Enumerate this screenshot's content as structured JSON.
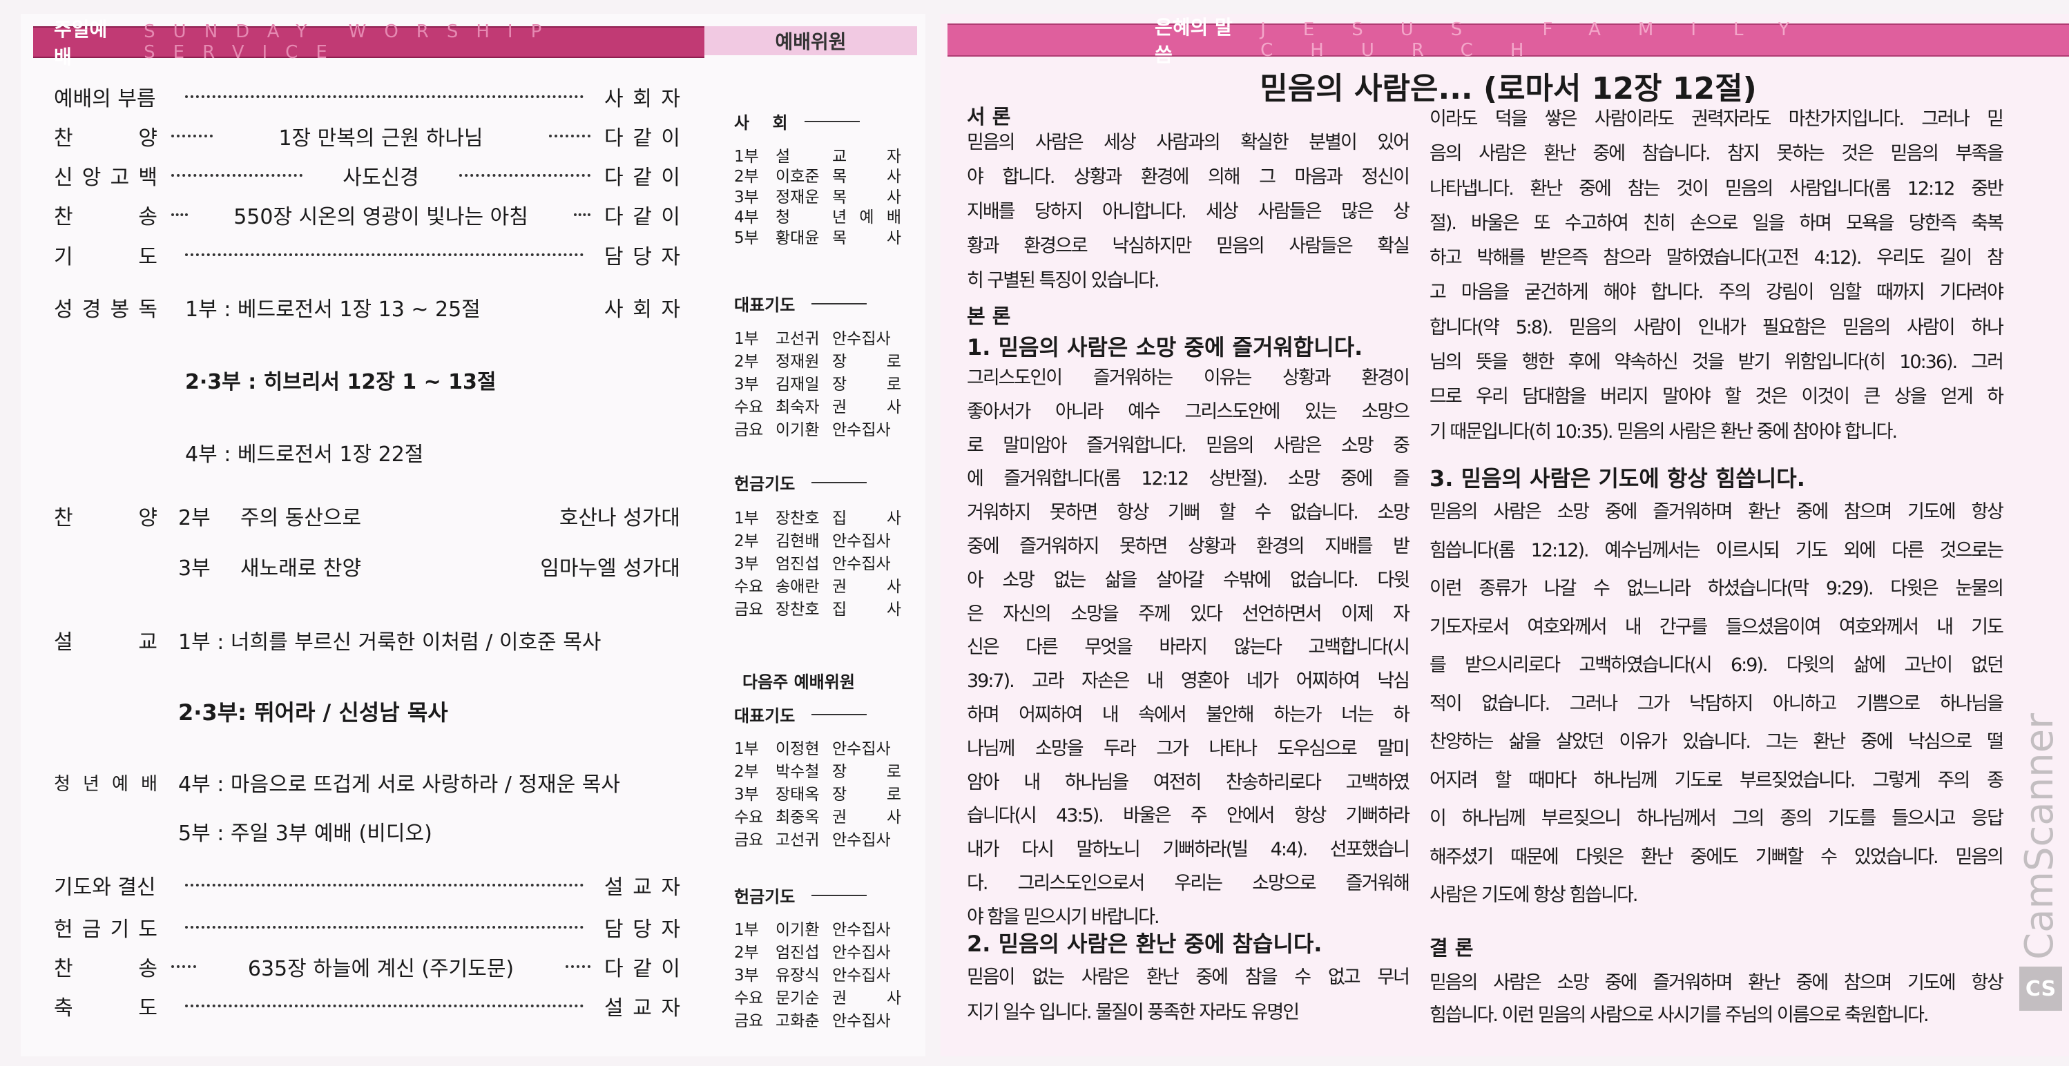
{
  "headers": {
    "worship_ko": "주일예배",
    "worship_en": "SUNDAY WORSHIP SERVICE",
    "staff": "예배위원",
    "word_ko": "은혜의 말씀",
    "word_en": "JESUS FAMILY CHURCH"
  },
  "colors": {
    "worship_bar": "#c13a74",
    "staff_bar": "#f1c9e2",
    "word_bar": "#df5f9d"
  },
  "order": {
    "call": {
      "label": "예배의 부름",
      "right": "사 회 자"
    },
    "praise1": {
      "label": "찬 양",
      "center": "1장 만복의 근원 하나님",
      "right": "다 같 이"
    },
    "creed": {
      "label": "신 앙 고 백",
      "center": "사도신경",
      "right": "다 같 이"
    },
    "hymn1": {
      "label": "찬 송",
      "center": "550장 시온의 영광이 빛나는 아침",
      "right": "다 같 이"
    },
    "prayer": {
      "label": "기 도",
      "right": "담 당 자"
    },
    "reading": {
      "label": "성 경 봉 독",
      "p1": "1부 : 베드로전서 1장 13 ~ 25절",
      "right": "사 회 자",
      "p23": "2·3부 : 히브리서 12장 1 ~ 13절",
      "p4": "4부 : 베드로전서 1장 22절"
    },
    "choir": {
      "label": "찬 양",
      "r1_part": "2부",
      "r1_song": "주의 동산으로",
      "r1_choir": "호산나 성가대",
      "r2_part": "3부",
      "r2_song": "새노래로 찬양",
      "r2_choir": "임마누엘 성가대"
    },
    "sermon": {
      "label": "설 교",
      "p1": "1부 : 너희를 부르신 거룩한 이처럼 / 이호준 목사",
      "p23": "2·3부: 뛰어라  / 신성남 목사"
    },
    "youth": {
      "label": "청 년 예 배",
      "p4": "4부 : 마음으로 뜨겁게 서로 사랑하라 / 정재운 목사",
      "p5": "5부 : 주일 3부 예배 (비디오)"
    },
    "decision": {
      "label": "기도와 결신",
      "right": "설 교 자"
    },
    "offering": {
      "label": "헌 금 기 도",
      "right": "담 당 자"
    },
    "hymn2": {
      "label": "찬 송",
      "center": "635장 하늘에 계신 (주기도문)",
      "right": "다 같 이"
    },
    "benediction": {
      "label": "축 도",
      "right": "설 교 자"
    }
  },
  "staff": {
    "host": {
      "heading": "사    회",
      "items": [
        {
          "part": "1부",
          "name": "설",
          "title": "교 자"
        },
        {
          "part": "2부",
          "name": "이호준",
          "title": "목 사"
        },
        {
          "part": "3부",
          "name": "정재운",
          "title": "목 사"
        },
        {
          "part": "4부",
          "name": "청",
          "title": "년 예 배"
        },
        {
          "part": "5부",
          "name": "황대윤",
          "title": "목 사"
        }
      ]
    },
    "rep_prayer": {
      "heading": "대표기도",
      "items": [
        {
          "part": "1부",
          "name": "고선귀",
          "title": "안수집사"
        },
        {
          "part": "2부",
          "name": "정재원",
          "title": "장 로"
        },
        {
          "part": "3부",
          "name": "김재일",
          "title": "장 로"
        },
        {
          "part": "수요",
          "name": "최숙자",
          "title": "권 사"
        },
        {
          "part": "금요",
          "name": "이기환",
          "title": "안수집사"
        }
      ]
    },
    "offering_prayer": {
      "heading": "헌금기도",
      "items": [
        {
          "part": "1부",
          "name": "장찬호",
          "title": "집 사"
        },
        {
          "part": "2부",
          "name": "김현배",
          "title": "안수집사"
        },
        {
          "part": "3부",
          "name": "엄진섭",
          "title": "안수집사"
        },
        {
          "part": "수요",
          "name": "송애란",
          "title": "권 사"
        },
        {
          "part": "금요",
          "name": "장찬호",
          "title": "집 사"
        }
      ]
    },
    "next_week": "다음주 예배위원",
    "next_rep_prayer": {
      "heading": "대표기도",
      "items": [
        {
          "part": "1부",
          "name": "이정현",
          "title": "안수집사"
        },
        {
          "part": "2부",
          "name": "박수철",
          "title": "장 로"
        },
        {
          "part": "3부",
          "name": "장태옥",
          "title": "장 로"
        },
        {
          "part": "수요",
          "name": "최중옥",
          "title": "권 사"
        },
        {
          "part": "금요",
          "name": "고선귀",
          "title": "안수집사"
        }
      ]
    },
    "next_offering_prayer": {
      "heading": "헌금기도",
      "items": [
        {
          "part": "1부",
          "name": "이기환",
          "title": "안수집사"
        },
        {
          "part": "2부",
          "name": "엄진섭",
          "title": "안수집사"
        },
        {
          "part": "3부",
          "name": "유장식",
          "title": "안수집사"
        },
        {
          "part": "수요",
          "name": "문기순",
          "title": "권 사"
        },
        {
          "part": "금요",
          "name": "고화춘",
          "title": "안수집사"
        }
      ]
    }
  },
  "sermon": {
    "title": "믿음의 사람은... (로마서 12장 12절)",
    "intro_heading": "서 론",
    "intro": [
      "믿음의 사람은 세상 사람과의 확실한 분별이 있어",
      "야 합니다. 상황과 환경에 의해 그 마음과 정신이",
      "지배를 당하지 아니합니다. 세상 사람들은 많은 상",
      "황과 환경으로 낙심하지만 믿음의 사람들은 확실",
      "히 구별된 특징이 있습니다."
    ],
    "body_heading": "본 론",
    "point1": "1. 믿음의 사람은 소망 중에 즐거워합니다.",
    "point1_text": [
      "그리스도인이 즐거워하는 이유는 상황과 환경이",
      "좋아서가 아니라 예수 그리스도안에 있는 소망으",
      "로 말미암아 즐거워합니다. 믿음의 사람은 소망 중",
      "에 즐거워합니다(롬 12:12 상반절). 소망 중에 즐",
      "거워하지 못하면 항상 기뻐 할 수 없습니다. 소망",
      "중에 즐거워하지 못하면 상황과 환경의 지배를 받",
      "아 소망 없는 삶을 살아갈 수밖에 없습니다. 다윗",
      "은 자신의 소망을 주께 있다 선언하면서 이제 자",
      "신은 다른 무엇을 바라지 않는다 고백합니다(시",
      "39:7). 고라 자손은 내 영혼아 네가 어찌하여 낙심",
      "하며 어찌하여 내 속에서 불안해 하는가 너는 하",
      "나님께 소망을 두라 그가 나타나 도우심으로 말미",
      "암아 내 하나님을 여전히 찬송하리로다 고백하였",
      "습니다(시 43:5). 바울은 주 안에서 항상 기뻐하라",
      "내가 다시 말하노니 기뻐하라(빌 4:4). 선포했습니",
      "다. 그리스도인으로서 우리는 소망으로 즐거워해",
      "야 함을 믿으시기 바랍니다."
    ],
    "point2": "2. 믿음의 사람은 환난 중에 참습니다.",
    "point2_text_a": [
      "믿음이 없는 사람은 환난 중에 참을 수 없고 무너",
      "지기 일수 입니다. 물질이 풍족한 자라도 유명인"
    ],
    "point2_text_b": [
      "이라도 덕을 쌓은 사람이라도 권력자라도 마찬가지입니다. 그러나 믿",
      "음의 사람은 환난 중에 참습니다. 참지 못하는 것은 믿음의 부족을",
      "나타냅니다. 환난 중에 참는 것이 믿음의 사람입니다(롬 12:12 중반",
      "절). 바울은 또 수고하여 친히 손으로 일을 하며 모욕을 당한즉 축복",
      "하고 박해를 받은즉 참으라 말하였습니다(고전 4:12). 우리도 길이 참",
      "고 마음을 굳건하게 해야 합니다. 주의 강림이 임할 때까지 기다려야",
      "합니다(약 5:8). 믿음의 사람이 인내가 필요함은 믿음의 사람이 하나",
      "님의 뜻을 행한 후에 약속하신 것을 받기 위함입니다(히 10:36). 그러",
      "므로 우리 담대함을 버리지 말아야 할 것은 이것이 큰 상을 얻게 하",
      "기 때문입니다(히 10:35). 믿음의 사람은 환난 중에 참아야 합니다."
    ],
    "point3": "3. 믿음의 사람은 기도에 항상 힘씁니다.",
    "point3_text": [
      "믿음의 사람은 소망 중에 즐거워하며 환난 중에 참으며 기도에 항상",
      "힘씁니다(롬 12:12). 예수님께서는 이르시되 기도 외에 다른 것으로는",
      "이런 종류가 나갈 수 없느니라 하셨습니다(막 9:29). 다윗은 눈물의",
      "기도자로서 여호와께서 내 간구를 들으셨음이여 여호와께서 내 기도",
      "를 받으시리로다 고백하였습니다(시 6:9). 다윗의 삶에 고난이 없던",
      "적이 없습니다. 그러나 그가 낙담하지 아니하고 기쁨으로 하나님을",
      "찬양하는 삶을 살았던 이유가 있습니다. 그는 환난 중에 낙심으로 떨",
      "어지려 할 때마다 하나님께 기도로 부르짖었습니다. 그렇게 주의 종",
      "이 하나님께 부르짖으니 하나님께서 그의 종의 기도를 들으시고 응답",
      "해주셨기 때문에 다윗은 환난 중에도 기뻐할 수 있었습니다. 믿음의",
      "사람은 기도에 항상 힘씁니다."
    ],
    "conclusion_heading": "결 론",
    "conclusion": [
      "믿음의 사람은 소망 중에 즐거워하며 환난 중에 참으며 기도에 항상",
      "힘씁니다. 이런 믿음의 사람으로 사시기를 주님의 이름으로 축원합니다."
    ]
  },
  "watermark": {
    "text": "CamScanner",
    "logo": "CS"
  }
}
